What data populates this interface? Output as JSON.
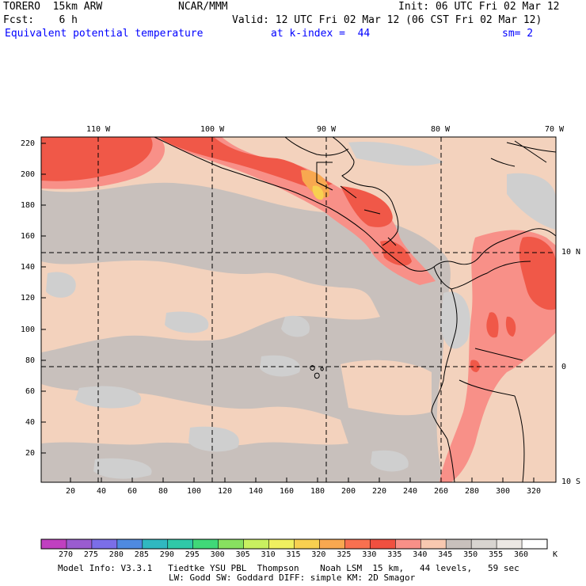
{
  "header": {
    "model": "TORERO  15km ARW",
    "center": "NCAR/MMM",
    "init": "Init: 06 UTC Fri 02 Mar 12",
    "fcst": "Fcst:    6 h",
    "valid": "Valid: 12 UTC Fri 02 Mar 12 (06 CST Fri 02 Mar 12)",
    "field": "Equivalent potential temperature",
    "level": "at k-index =  44",
    "smooth": "sm= 2"
  },
  "map": {
    "lon_labels": [
      "110 W",
      "100 W",
      "90 W",
      "80 W",
      "70 W"
    ],
    "lat_labels": [
      "10 N",
      "0",
      "10 S"
    ],
    "y_ticks": [
      "220",
      "200",
      "180",
      "160",
      "140",
      "120",
      "100",
      "80",
      "60",
      "40",
      "20"
    ],
    "x_ticks": [
      "20",
      "40",
      "60",
      "80",
      "100",
      "120",
      "140",
      "160",
      "180",
      "200",
      "220",
      "240",
      "260",
      "280",
      "300",
      "320"
    ]
  },
  "colorbar": {
    "labels": [
      "270",
      "275",
      "280",
      "285",
      "290",
      "295",
      "300",
      "305",
      "310",
      "315",
      "320",
      "325",
      "330",
      "335",
      "340",
      "345",
      "350",
      "355",
      "360"
    ],
    "unit": "K",
    "colors": [
      "#c040c0",
      "#9a5cd0",
      "#7b6ee8",
      "#4f8ae0",
      "#30b8c0",
      "#30c8a8",
      "#40d878",
      "#88e060",
      "#c8f060",
      "#f0f060",
      "#f8d050",
      "#f8a850",
      "#f87050",
      "#f05040",
      "#f89088",
      "#f8c8b0",
      "#c8c0bc",
      "#d8d4d0",
      "#ece8e4",
      "#ffffff"
    ]
  },
  "footer": {
    "line1": "Model Info: V3.3.1   Tiedtke YSU PBL  Thompson    Noah LSM  15 km,   44 levels,   59 sec",
    "line2": "LW: Godd SW: Goddard DIFF: simple KM: 2D Smagor"
  }
}
